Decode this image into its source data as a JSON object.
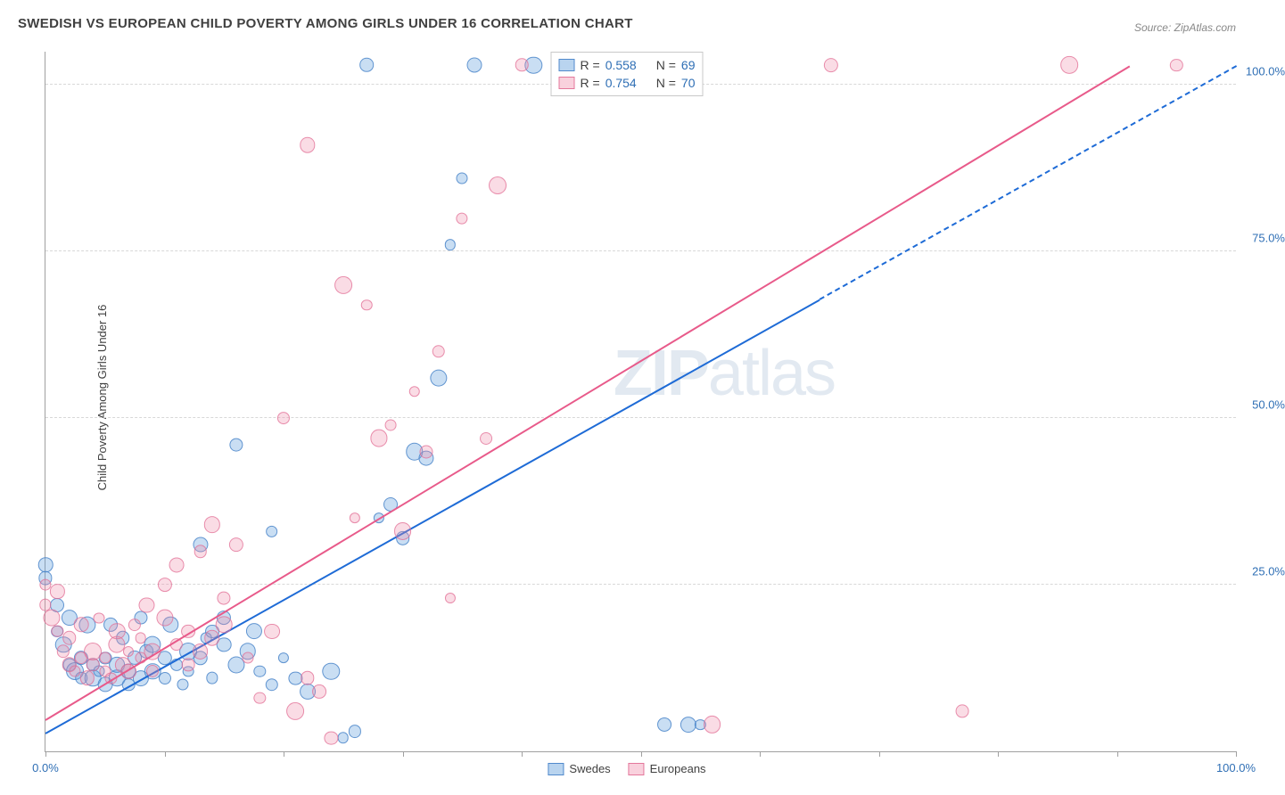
{
  "title": "SWEDISH VS EUROPEAN CHILD POVERTY AMONG GIRLS UNDER 16 CORRELATION CHART",
  "source": "Source: ZipAtlas.com",
  "y_axis_label": "Child Poverty Among Girls Under 16",
  "watermark_bold": "ZIP",
  "watermark_rest": "atlas",
  "chart": {
    "type": "scatter",
    "background_color": "#ffffff",
    "grid_color": "#d8d8d8",
    "axis_color": "#a0a0a0",
    "xlim": [
      0,
      100
    ],
    "ylim": [
      0,
      105
    ],
    "x_ticks": [
      0,
      10,
      20,
      30,
      40,
      50,
      60,
      70,
      80,
      90,
      100
    ],
    "x_tick_labels": {
      "0": "0.0%",
      "100": "100.0%"
    },
    "y_ticks": [
      25,
      50,
      75,
      100
    ],
    "y_tick_labels": {
      "25": "25.0%",
      "50": "50.0%",
      "75": "75.0%",
      "100": "100.0%"
    },
    "point_radius": 8,
    "series": [
      {
        "name": "Swedes",
        "fill_color": "rgba(100,160,220,0.35)",
        "stroke_color": "rgba(70,130,200,0.8)",
        "trend_color": "#1e6bd6",
        "r_value": "0.558",
        "n_value": "69",
        "trend": {
          "x1": 0,
          "y1": 3,
          "x2": 65,
          "y2": 68,
          "dash_x2": 100,
          "dash_y2": 103
        },
        "points": [
          [
            0,
            26
          ],
          [
            0,
            28
          ],
          [
            1,
            22
          ],
          [
            1,
            18
          ],
          [
            1.5,
            16
          ],
          [
            2,
            20
          ],
          [
            2,
            13
          ],
          [
            2.5,
            12
          ],
          [
            3,
            11
          ],
          [
            3,
            14
          ],
          [
            3.5,
            19
          ],
          [
            4,
            13
          ],
          [
            4,
            11
          ],
          [
            4.5,
            12
          ],
          [
            5,
            10
          ],
          [
            5,
            14
          ],
          [
            5.5,
            19
          ],
          [
            6,
            11
          ],
          [
            6,
            13
          ],
          [
            6.5,
            17
          ],
          [
            7,
            10
          ],
          [
            7,
            12
          ],
          [
            7.5,
            14
          ],
          [
            8,
            20
          ],
          [
            8,
            11
          ],
          [
            8.5,
            15
          ],
          [
            9,
            16
          ],
          [
            9,
            12
          ],
          [
            10,
            11
          ],
          [
            10,
            14
          ],
          [
            10.5,
            19
          ],
          [
            11,
            13
          ],
          [
            11.5,
            10
          ],
          [
            12,
            15
          ],
          [
            12,
            12
          ],
          [
            13,
            14
          ],
          [
            13,
            31
          ],
          [
            13.5,
            17
          ],
          [
            14,
            18
          ],
          [
            14,
            11
          ],
          [
            15,
            16
          ],
          [
            15,
            20
          ],
          [
            16,
            13
          ],
          [
            16,
            46
          ],
          [
            17,
            15
          ],
          [
            17.5,
            18
          ],
          [
            18,
            12
          ],
          [
            19,
            10
          ],
          [
            19,
            33
          ],
          [
            20,
            14
          ],
          [
            21,
            11
          ],
          [
            22,
            9
          ],
          [
            24,
            12
          ],
          [
            25,
            2
          ],
          [
            26,
            3
          ],
          [
            27,
            103
          ],
          [
            28,
            35
          ],
          [
            29,
            37
          ],
          [
            30,
            32
          ],
          [
            31,
            45
          ],
          [
            32,
            44
          ],
          [
            33,
            56
          ],
          [
            34,
            76
          ],
          [
            35,
            86
          ],
          [
            36,
            103
          ],
          [
            41,
            103
          ],
          [
            52,
            4
          ],
          [
            54,
            4
          ],
          [
            55,
            4
          ]
        ]
      },
      {
        "name": "Europeans",
        "fill_color": "rgba(240,140,170,0.3)",
        "stroke_color": "rgba(225,105,145,0.7)",
        "trend_color": "#e85a8a",
        "r_value": "0.754",
        "n_value": "70",
        "trend": {
          "x1": 0,
          "y1": 5,
          "x2": 91,
          "y2": 103
        },
        "points": [
          [
            0,
            22
          ],
          [
            0,
            25
          ],
          [
            0.5,
            20
          ],
          [
            1,
            18
          ],
          [
            1,
            24
          ],
          [
            1.5,
            15
          ],
          [
            2,
            13
          ],
          [
            2,
            17
          ],
          [
            2.5,
            12
          ],
          [
            3,
            14
          ],
          [
            3,
            19
          ],
          [
            3.5,
            11
          ],
          [
            4,
            13
          ],
          [
            4,
            15
          ],
          [
            4.5,
            20
          ],
          [
            5,
            12
          ],
          [
            5,
            14
          ],
          [
            5.5,
            11
          ],
          [
            6,
            16
          ],
          [
            6,
            18
          ],
          [
            6.5,
            13
          ],
          [
            7,
            12
          ],
          [
            7,
            15
          ],
          [
            7.5,
            19
          ],
          [
            8,
            14
          ],
          [
            8,
            17
          ],
          [
            8.5,
            22
          ],
          [
            9,
            12
          ],
          [
            9,
            15
          ],
          [
            10,
            20
          ],
          [
            10,
            25
          ],
          [
            11,
            16
          ],
          [
            11,
            28
          ],
          [
            12,
            13
          ],
          [
            12,
            18
          ],
          [
            13,
            15
          ],
          [
            13,
            30
          ],
          [
            14,
            17
          ],
          [
            14,
            34
          ],
          [
            15,
            19
          ],
          [
            15,
            23
          ],
          [
            16,
            31
          ],
          [
            17,
            14
          ],
          [
            18,
            8
          ],
          [
            19,
            18
          ],
          [
            20,
            50
          ],
          [
            21,
            6
          ],
          [
            22,
            11
          ],
          [
            22,
            91
          ],
          [
            23,
            9
          ],
          [
            24,
            2
          ],
          [
            25,
            70
          ],
          [
            26,
            35
          ],
          [
            27,
            67
          ],
          [
            28,
            47
          ],
          [
            29,
            49
          ],
          [
            30,
            33
          ],
          [
            31,
            54
          ],
          [
            32,
            45
          ],
          [
            33,
            60
          ],
          [
            34,
            23
          ],
          [
            35,
            80
          ],
          [
            37,
            47
          ],
          [
            38,
            85
          ],
          [
            40,
            103
          ],
          [
            56,
            4
          ],
          [
            66,
            103
          ],
          [
            77,
            6
          ],
          [
            86,
            103
          ],
          [
            95,
            103
          ]
        ]
      }
    ]
  },
  "legend_top": [
    {
      "swatch": "blue",
      "r_label": "R = ",
      "r_val": "0.558",
      "n_label": "N = ",
      "n_val": "69"
    },
    {
      "swatch": "pink",
      "r_label": "R = ",
      "r_val": "0.754",
      "n_label": "N = ",
      "n_val": "70"
    }
  ],
  "legend_bottom": [
    {
      "swatch": "blue",
      "label": "Swedes"
    },
    {
      "swatch": "pink",
      "label": "Europeans"
    }
  ]
}
